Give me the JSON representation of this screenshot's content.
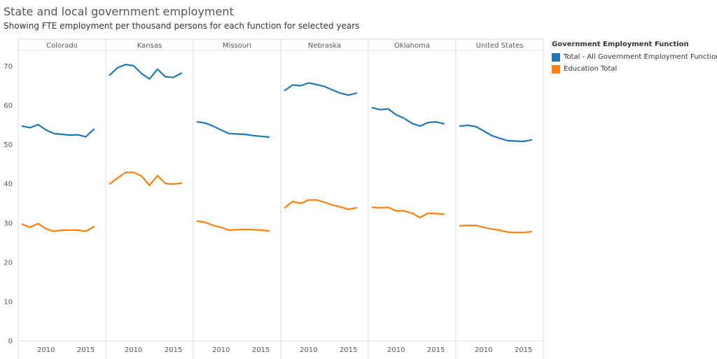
{
  "title": "State and local government employment",
  "subtitle": "Showing FTE employment per thousand persons  for each function for selected years",
  "legend": {
    "title": "Government Employment Function",
    "items": [
      {
        "label": "Total - All Government Employment Functions",
        "color": "#1f77b4"
      },
      {
        "label": "Education Total",
        "color": "#ff7f0e"
      }
    ]
  },
  "chart_data": {
    "type": "line",
    "title": "State and local government employment",
    "subtitle": "Showing FTE employment per thousand persons  for each function for selected years",
    "xlabel": "",
    "ylabel": "",
    "ylim": [
      0,
      74
    ],
    "yticks": [
      0,
      10,
      20,
      30,
      40,
      50,
      60,
      70
    ],
    "xlim": [
      2006.5,
      2017.5
    ],
    "xticks": [
      2010,
      2015
    ],
    "grid": false,
    "legend_position": "right",
    "x": [
      2007,
      2008,
      2009,
      2010,
      2011,
      2012,
      2013,
      2014,
      2015,
      2016
    ],
    "panels": [
      {
        "name": "Colorado",
        "series": [
          {
            "name": "Total - All Government Employment Functions",
            "values": [
              54.7,
              54.3,
              55.1,
              53.7,
              52.8,
              52.6,
              52.4,
              52.5,
              52.0,
              53.9
            ]
          },
          {
            "name": "Education Total",
            "values": [
              29.7,
              28.9,
              29.9,
              28.5,
              27.9,
              28.2,
              28.2,
              28.2,
              27.9,
              29.1
            ]
          }
        ]
      },
      {
        "name": "Kansas",
        "series": [
          {
            "name": "Total - All Government Employment Functions",
            "values": [
              67.7,
              69.6,
              70.4,
              70.1,
              68.1,
              66.7,
              69.2,
              67.3,
              67.1,
              68.2
            ]
          },
          {
            "name": "Education Total",
            "values": [
              40.0,
              41.5,
              42.9,
              42.9,
              42.0,
              39.6,
              42.1,
              40.1,
              39.9,
              40.2
            ]
          }
        ]
      },
      {
        "name": "Missouri",
        "series": [
          {
            "name": "Total - All Government Employment Functions",
            "values": [
              55.8,
              55.5,
              54.7,
              53.7,
              52.8,
              52.7,
              52.6,
              52.3,
              52.1,
              51.9
            ]
          },
          {
            "name": "Education Total",
            "values": [
              30.5,
              30.2,
              29.4,
              28.9,
              28.2,
              28.3,
              28.4,
              28.3,
              28.2,
              28.0
            ]
          }
        ]
      },
      {
        "name": "Nebraska",
        "series": [
          {
            "name": "Total - All Government Employment Functions",
            "values": [
              63.8,
              65.2,
              65.0,
              65.7,
              65.3,
              64.8,
              63.9,
              63.1,
              62.6,
              63.1
            ]
          },
          {
            "name": "Education Total",
            "values": [
              33.9,
              35.5,
              35.0,
              35.9,
              35.9,
              35.3,
              34.6,
              34.1,
              33.5,
              33.9
            ]
          }
        ]
      },
      {
        "name": "Oklahoma",
        "series": [
          {
            "name": "Total - All Government Employment Functions",
            "values": [
              59.4,
              58.9,
              59.1,
              57.6,
              56.7,
              55.4,
              54.7,
              55.6,
              55.8,
              55.3
            ]
          },
          {
            "name": "Education Total",
            "values": [
              34.0,
              33.9,
              34.0,
              33.1,
              33.1,
              32.5,
              31.4,
              32.5,
              32.4,
              32.3
            ]
          }
        ]
      },
      {
        "name": "United States",
        "series": [
          {
            "name": "Total - All Government Employment Functions",
            "values": [
              54.7,
              54.9,
              54.6,
              53.5,
              52.3,
              51.6,
              51.0,
              50.9,
              50.8,
              51.2
            ]
          },
          {
            "name": "Education Total",
            "values": [
              29.3,
              29.4,
              29.4,
              28.9,
              28.5,
              28.2,
              27.7,
              27.6,
              27.6,
              27.8
            ]
          }
        ]
      }
    ]
  }
}
